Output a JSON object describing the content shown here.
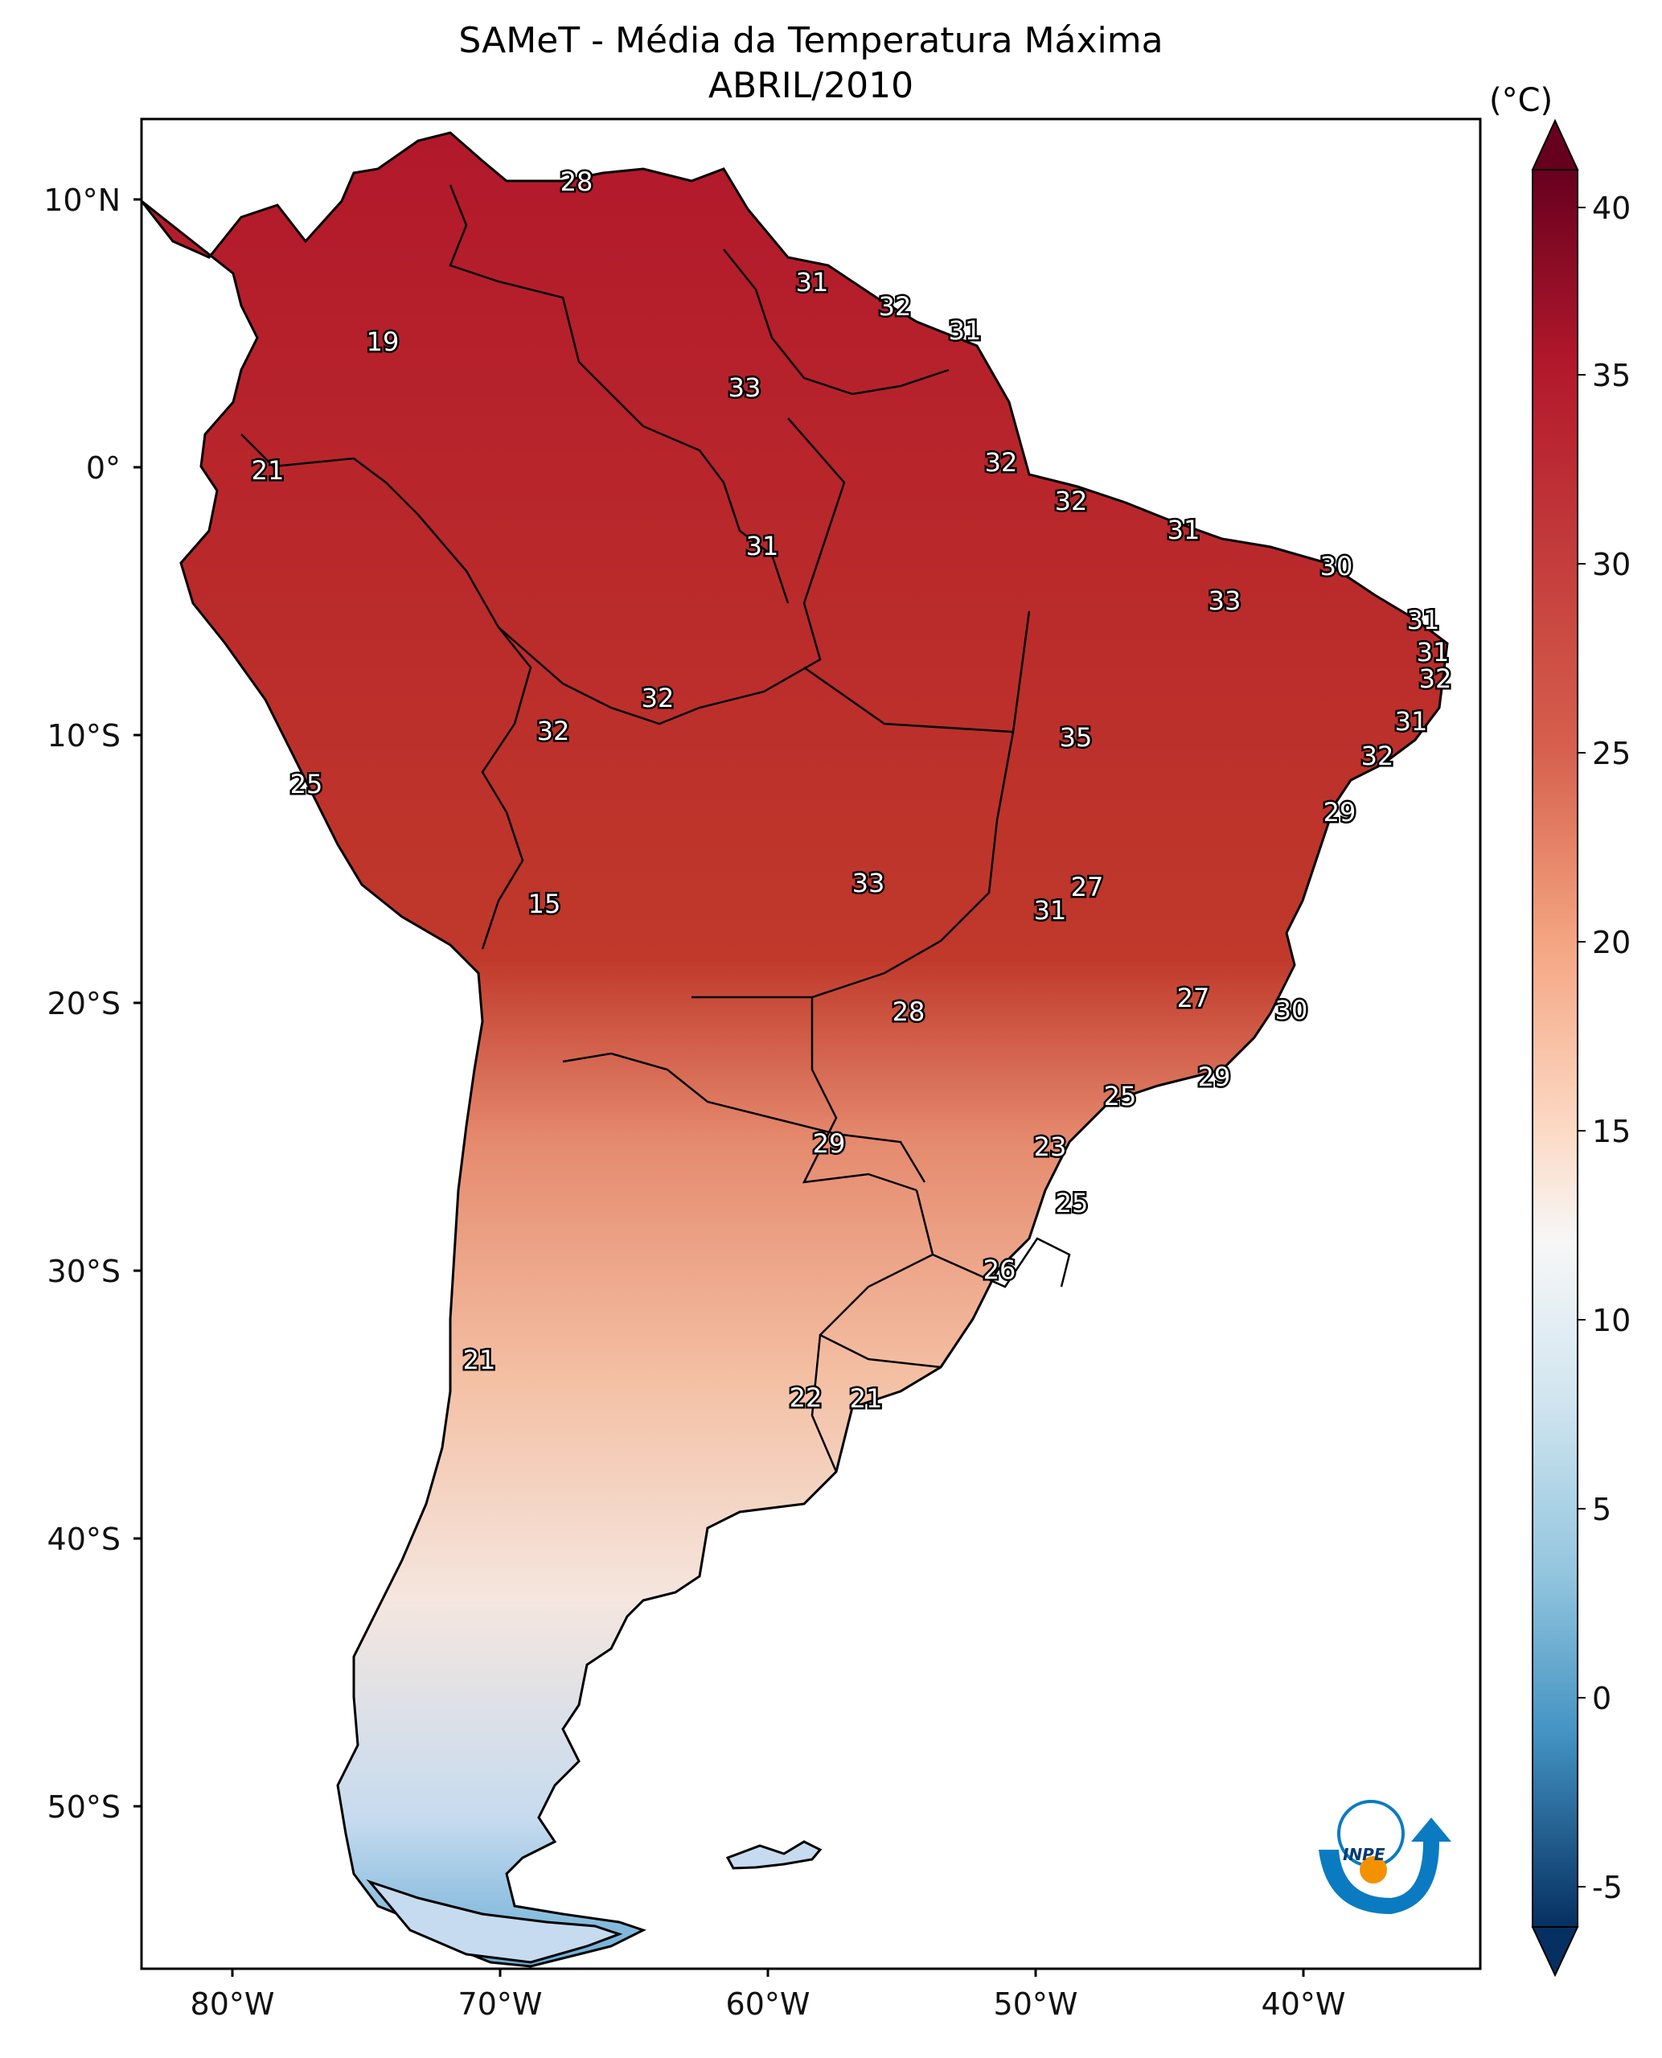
{
  "title": "SAMeT - Média da Temperatura Máxima",
  "subtitle": "ABRIL/2010",
  "colorbar": {
    "unit": "(°C)",
    "ticks": [
      "40",
      "35",
      "30",
      "25",
      "20",
      "15",
      "10",
      "5",
      "0",
      "-5"
    ],
    "range": [
      -5,
      40
    ],
    "colormap": "RdBu_r",
    "colors": {
      "low": "#053061",
      "mid_low": "#4393c3",
      "mid": "#f7f7f7",
      "mid_high": "#f4a582",
      "high": "#67001f"
    }
  },
  "axes": {
    "lat_ticks": [
      "10°N",
      "0°",
      "10°S",
      "20°S",
      "30°S",
      "40°S",
      "50°S"
    ],
    "lon_ticks": [
      "80°W",
      "70°W",
      "60°W",
      "50°W",
      "40°W"
    ]
  },
  "labels": [
    "28",
    "19",
    "21",
    "31",
    "32",
    "31",
    "33",
    "32",
    "32",
    "31",
    "31",
    "30",
    "33",
    "31",
    "31",
    "32",
    "32",
    "32",
    "31",
    "35",
    "32",
    "25",
    "15",
    "29",
    "33",
    "27",
    "31",
    "28",
    "27",
    "30",
    "29",
    "25",
    "29",
    "23",
    "25",
    "26",
    "21",
    "22",
    "21"
  ],
  "logo": {
    "text": "INPE",
    "colors": [
      "#0a7bc1",
      "#f39200"
    ]
  }
}
